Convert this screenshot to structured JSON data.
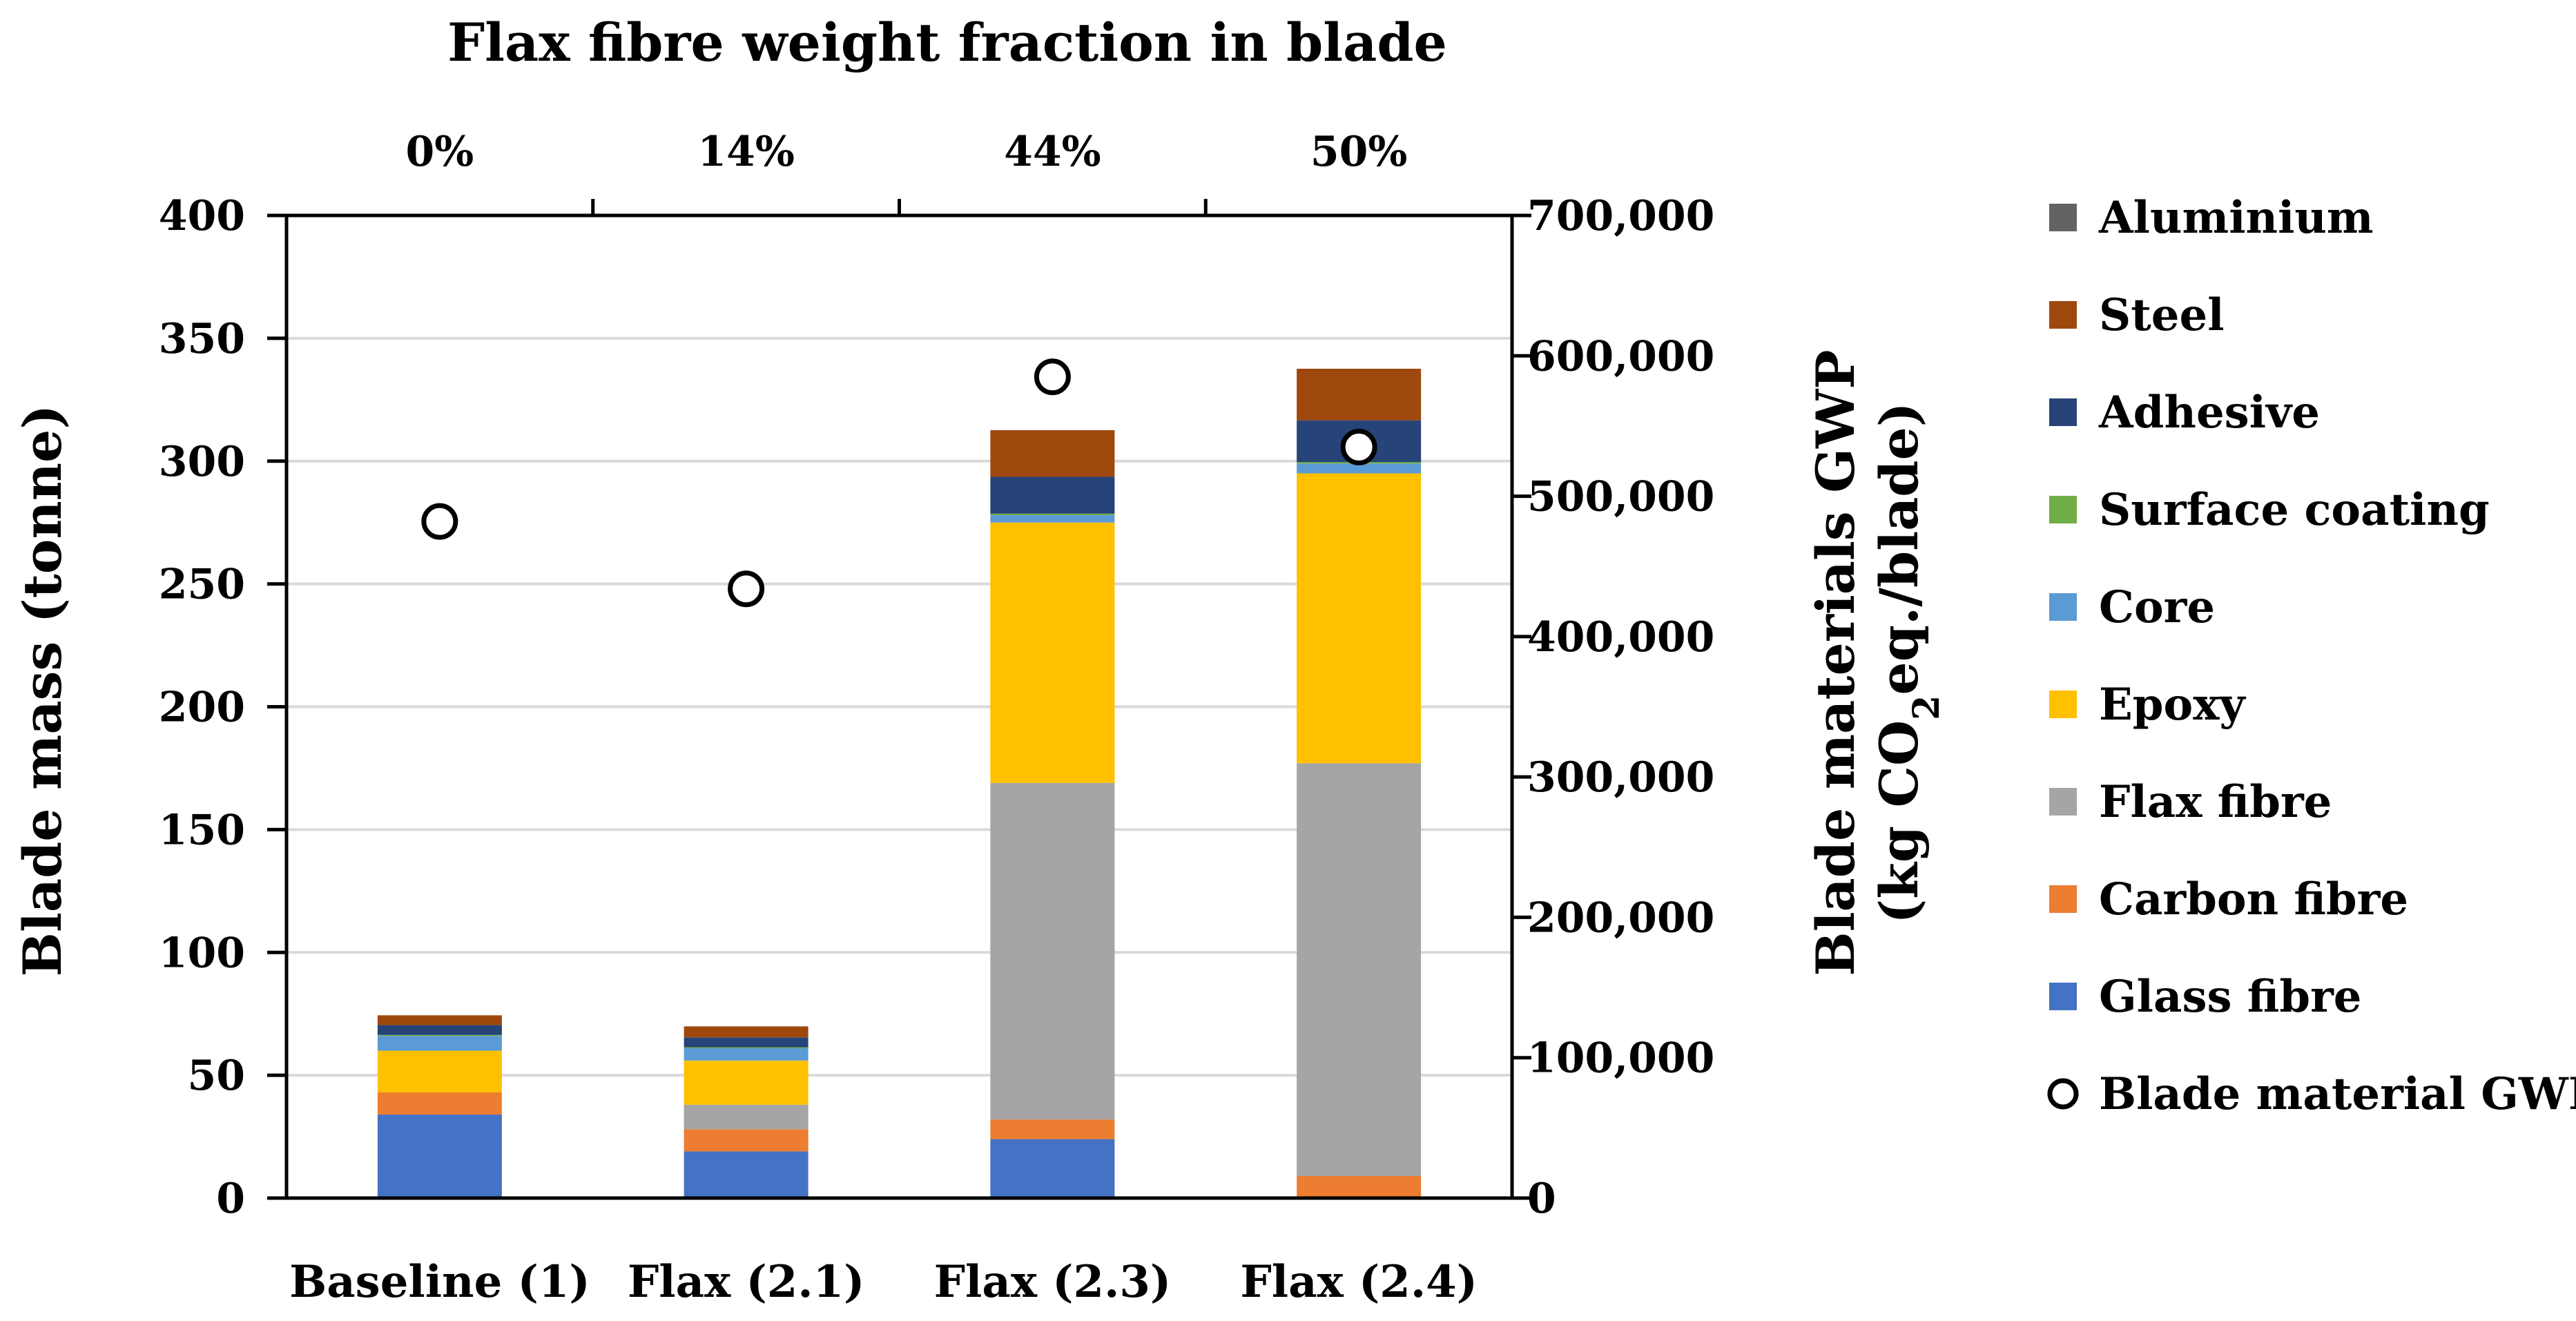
{
  "chart_data": {
    "type": "bar",
    "stacked": true,
    "title": "Flax fibre weight fraction in blade",
    "top_axis_labels": [
      "0%",
      "14%",
      "44%",
      "50%"
    ],
    "categories": [
      "Baseline (1)",
      "Flax (2.1)",
      "Flax (2.3)",
      "Flax (2.4)"
    ],
    "ylabel": "Blade mass (tonne)",
    "ylim": [
      0,
      400
    ],
    "y_ticks": [
      0,
      50,
      100,
      150,
      200,
      250,
      300,
      350,
      400
    ],
    "y2label_line1": "Blade materials GWP",
    "y2label_line2_prefix": "(kg CO",
    "y2label_line2_sub": "2",
    "y2label_line2_suffix": "eq./blade)",
    "y2lim": [
      0,
      700000
    ],
    "y2_ticks": [
      0,
      100000,
      200000,
      300000,
      400000,
      500000,
      600000,
      700000
    ],
    "y2_tick_labels": [
      "0",
      "100,000",
      "200,000",
      "300,000",
      "400,000",
      "500,000",
      "600,000",
      "700,000"
    ],
    "grid": true,
    "series": [
      {
        "name": "Glass fibre",
        "color": "#4472C4",
        "values": [
          34,
          19,
          24,
          0
        ]
      },
      {
        "name": "Carbon fibre",
        "color": "#ED7D31",
        "values": [
          9,
          9,
          8,
          9
        ]
      },
      {
        "name": "Flax fibre",
        "color": "#A5A5A5",
        "values": [
          0,
          10,
          137,
          168
        ]
      },
      {
        "name": "Epoxy",
        "color": "#FFC000",
        "values": [
          17,
          18,
          106,
          118
        ]
      },
      {
        "name": "Core",
        "color": "#5B9BD5",
        "values": [
          6,
          5,
          3,
          4
        ]
      },
      {
        "name": "Surface coating",
        "color": "#70AD47",
        "values": [
          0.4,
          0.4,
          0.6,
          0.6
        ]
      },
      {
        "name": "Adhesive",
        "color": "#264478",
        "values": [
          4,
          4,
          15,
          17
        ]
      },
      {
        "name": "Steel",
        "color": "#9E480E",
        "values": [
          4,
          4.5,
          19,
          21
        ]
      },
      {
        "name": "Aluminium",
        "color": "#636363",
        "values": [
          0,
          0,
          0,
          0
        ]
      }
    ],
    "gwp": {
      "name": "Blade material GWP",
      "values": [
        482000,
        434000,
        585000,
        535000
      ]
    },
    "legend_position": "right"
  }
}
